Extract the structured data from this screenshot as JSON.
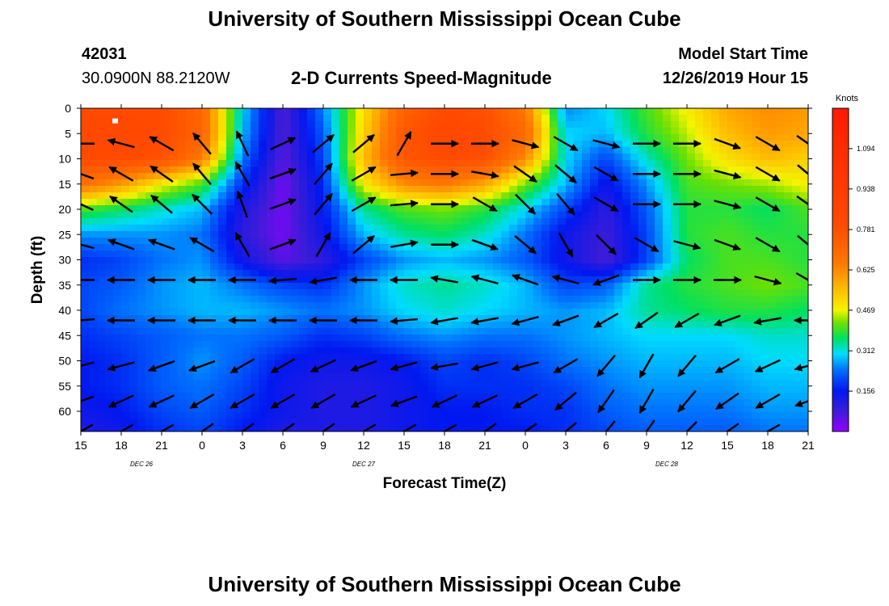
{
  "header": {
    "title": "University of Southern Mississippi Ocean Cube",
    "station_id": "42031",
    "station_coords": "30.0900N 88.2120W",
    "chart_title": "2-D Currents Speed-Magnitude",
    "model_start_label": "Model Start Time",
    "model_start_value": "12/26/2019 Hour 15"
  },
  "footer": {
    "title": "University of Southern Mississippi Ocean Cube"
  },
  "chart_data": {
    "type": "heatmap",
    "title": "2-D Currents Speed-Magnitude",
    "xlabel": "Forecast Time(Z)",
    "ylabel": "Depth (ft)",
    "x_start": "12/26/2019 15Z",
    "x_step_hours": 3,
    "x_tick_labels": [
      "15",
      "18",
      "21",
      "0",
      "3",
      "6",
      "9",
      "12",
      "15",
      "18",
      "21",
      "0",
      "3",
      "6",
      "9",
      "12",
      "15",
      "18",
      "21"
    ],
    "x_day_labels": [
      {
        "label": "DEC 26",
        "at_tick": 1.5
      },
      {
        "label": "DEC 27",
        "at_tick": 7
      },
      {
        "label": "DEC 28",
        "at_tick": 14.5
      }
    ],
    "y_ticks": [
      0,
      5,
      10,
      15,
      20,
      25,
      30,
      35,
      40,
      45,
      50,
      55,
      60
    ],
    "ylim": [
      0,
      64
    ],
    "y_inverted": true,
    "colorbar": {
      "unit": "Knots",
      "range": [
        0.0,
        1.25
      ],
      "tick_values": [
        0.156,
        0.312,
        0.469,
        0.625,
        0.781,
        0.938,
        1.094
      ],
      "tick_labels": [
        "0.156",
        "0.312",
        "0.469",
        "0.625",
        "0.781",
        "0.938",
        "1.094"
      ],
      "stops": [
        {
          "v": 0.0,
          "color": "#9400ff"
        },
        {
          "v": 0.08,
          "color": "#3b1cd8"
        },
        {
          "v": 0.16,
          "color": "#0018f0"
        },
        {
          "v": 0.24,
          "color": "#0072ff"
        },
        {
          "v": 0.3,
          "color": "#00dcff"
        },
        {
          "v": 0.36,
          "color": "#00e060"
        },
        {
          "v": 0.42,
          "color": "#6ee000"
        },
        {
          "v": 0.47,
          "color": "#f4f400"
        },
        {
          "v": 0.55,
          "color": "#ffbc00"
        },
        {
          "v": 0.65,
          "color": "#ff7800"
        },
        {
          "v": 0.8,
          "color": "#ff4a00"
        },
        {
          "v": 1.25,
          "color": "#ff1a00"
        }
      ]
    },
    "grid_x_count": 19,
    "grid_depths": [
      0,
      5,
      10,
      15,
      20,
      25,
      30,
      35,
      40,
      45,
      50,
      55,
      60,
      64
    ],
    "speed_grid": [
      [
        0.8,
        0.8,
        0.8,
        0.7,
        0.3,
        0.06,
        0.25,
        0.5,
        0.72,
        0.8,
        0.78,
        0.65,
        0.25,
        0.3,
        0.4,
        0.48,
        0.58,
        0.62,
        0.6
      ],
      [
        0.82,
        0.82,
        0.8,
        0.72,
        0.28,
        0.06,
        0.22,
        0.52,
        0.76,
        0.82,
        0.8,
        0.7,
        0.3,
        0.28,
        0.38,
        0.45,
        0.55,
        0.6,
        0.58
      ],
      [
        0.8,
        0.8,
        0.78,
        0.65,
        0.24,
        0.05,
        0.2,
        0.55,
        0.76,
        0.8,
        0.78,
        0.62,
        0.3,
        0.2,
        0.32,
        0.42,
        0.5,
        0.55,
        0.52
      ],
      [
        0.68,
        0.6,
        0.48,
        0.4,
        0.18,
        0.03,
        0.18,
        0.48,
        0.62,
        0.66,
        0.58,
        0.42,
        0.28,
        0.14,
        0.26,
        0.4,
        0.42,
        0.44,
        0.48
      ],
      [
        0.4,
        0.36,
        0.32,
        0.28,
        0.12,
        0.03,
        0.16,
        0.34,
        0.4,
        0.42,
        0.38,
        0.3,
        0.2,
        0.1,
        0.22,
        0.38,
        0.38,
        0.36,
        0.4
      ],
      [
        0.26,
        0.26,
        0.26,
        0.24,
        0.1,
        0.03,
        0.14,
        0.28,
        0.34,
        0.36,
        0.32,
        0.24,
        0.14,
        0.08,
        0.2,
        0.38,
        0.4,
        0.38,
        0.38
      ],
      [
        0.18,
        0.2,
        0.24,
        0.26,
        0.14,
        0.05,
        0.1,
        0.2,
        0.26,
        0.28,
        0.26,
        0.22,
        0.14,
        0.07,
        0.2,
        0.36,
        0.4,
        0.4,
        0.38
      ],
      [
        0.2,
        0.22,
        0.26,
        0.28,
        0.24,
        0.2,
        0.18,
        0.26,
        0.32,
        0.34,
        0.32,
        0.28,
        0.2,
        0.22,
        0.34,
        0.38,
        0.4,
        0.42,
        0.4
      ],
      [
        0.2,
        0.24,
        0.26,
        0.28,
        0.28,
        0.26,
        0.24,
        0.26,
        0.3,
        0.32,
        0.3,
        0.28,
        0.26,
        0.28,
        0.34,
        0.36,
        0.38,
        0.38,
        0.36
      ],
      [
        0.18,
        0.2,
        0.22,
        0.24,
        0.24,
        0.22,
        0.18,
        0.2,
        0.24,
        0.26,
        0.24,
        0.24,
        0.26,
        0.28,
        0.3,
        0.3,
        0.3,
        0.32,
        0.32
      ],
      [
        0.16,
        0.18,
        0.22,
        0.26,
        0.22,
        0.16,
        0.14,
        0.14,
        0.16,
        0.2,
        0.18,
        0.2,
        0.24,
        0.26,
        0.28,
        0.28,
        0.28,
        0.3,
        0.3
      ],
      [
        0.16,
        0.18,
        0.22,
        0.24,
        0.2,
        0.14,
        0.12,
        0.12,
        0.14,
        0.18,
        0.18,
        0.18,
        0.2,
        0.24,
        0.26,
        0.26,
        0.26,
        0.28,
        0.28
      ],
      [
        0.14,
        0.16,
        0.2,
        0.22,
        0.18,
        0.14,
        0.12,
        0.12,
        0.14,
        0.16,
        0.16,
        0.18,
        0.18,
        0.22,
        0.24,
        0.24,
        0.24,
        0.26,
        0.26
      ],
      [
        0.12,
        0.14,
        0.18,
        0.2,
        0.16,
        0.12,
        0.12,
        0.12,
        0.14,
        0.16,
        0.16,
        0.16,
        0.18,
        0.2,
        0.22,
        0.22,
        0.22,
        0.24,
        0.24
      ]
    ],
    "vector_depths": [
      7,
      13,
      19,
      27,
      34,
      42,
      51,
      58,
      64
    ],
    "vector_direction_deg": [
      [
        180,
        165,
        150,
        130,
        115,
        25,
        40,
        40,
        60,
        0,
        0,
        345,
        330,
        345,
        0,
        0,
        340,
        330,
        325
      ],
      [
        160,
        150,
        145,
        130,
        120,
        20,
        50,
        30,
        5,
        0,
        350,
        325,
        320,
        330,
        0,
        0,
        345,
        330,
        320
      ],
      [
        155,
        145,
        140,
        135,
        110,
        20,
        50,
        30,
        5,
        0,
        330,
        315,
        310,
        330,
        0,
        0,
        345,
        330,
        325
      ],
      [
        165,
        160,
        160,
        150,
        120,
        20,
        60,
        40,
        10,
        0,
        340,
        320,
        300,
        315,
        330,
        345,
        340,
        330,
        320
      ],
      [
        180,
        180,
        180,
        180,
        180,
        185,
        190,
        180,
        180,
        170,
        165,
        160,
        165,
        200,
        0,
        0,
        0,
        345,
        330
      ],
      [
        185,
        180,
        180,
        180,
        180,
        180,
        180,
        180,
        185,
        190,
        190,
        195,
        200,
        210,
        215,
        210,
        200,
        190,
        180
      ],
      [
        195,
        195,
        200,
        200,
        210,
        210,
        205,
        200,
        195,
        190,
        195,
        195,
        210,
        230,
        240,
        230,
        210,
        205,
        195
      ],
      [
        200,
        205,
        205,
        210,
        210,
        210,
        210,
        205,
        200,
        205,
        205,
        210,
        220,
        235,
        240,
        230,
        215,
        210,
        200
      ],
      [
        210,
        210,
        210,
        215,
        215,
        215,
        215,
        210,
        210,
        210,
        215,
        215,
        220,
        230,
        235,
        225,
        215,
        210,
        205
      ]
    ],
    "marker": {
      "x_tick": 0.85,
      "depth": 2.5
    }
  }
}
